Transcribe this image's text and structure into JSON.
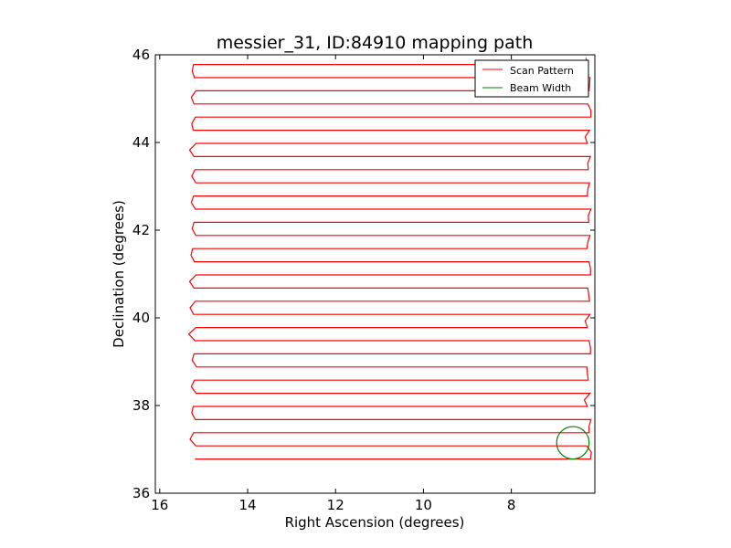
{
  "chart_data": {
    "type": "line",
    "title": "messier_31, ID:84910 mapping path",
    "xlabel": "Right Ascension (degrees)",
    "ylabel": "Declination (degrees)",
    "xlim": [
      16.1,
      6.1
    ],
    "ylim": [
      36,
      46
    ],
    "x_ticks": [
      16,
      14,
      12,
      10,
      8
    ],
    "y_ticks": [
      36,
      38,
      40,
      42,
      44,
      46
    ],
    "x_inverted": true,
    "grid": false,
    "legend": {
      "placement": "top-right"
    },
    "series": [
      {
        "name": "Scan Pattern",
        "color": "#ff0000",
        "scan": {
          "dec_start": 36.78,
          "dec_end": 45.78,
          "dec_step": 0.3,
          "ra_east": 15.2,
          "ra_west": 6.25,
          "ra_end_last": 15.0,
          "east_jitter": [
            0,
            -0.02,
            0.03,
            -0.01,
            0.04,
            -0.03,
            0.01,
            -0.04,
            0.02,
            0,
            -0.02,
            0.03,
            -0.01,
            0.02,
            -0.03,
            0.01,
            0.05,
            -0.02,
            0.02,
            -0.01,
            0.03,
            -0.02,
            0.0,
            0.02,
            -0.03,
            0.04,
            -0.01,
            0.02,
            -0.02,
            0.01,
            0.03
          ],
          "west_jitter": [
            0.05,
            -0.03,
            0.02,
            0.06,
            -0.02,
            0.04,
            0.0,
            -0.03,
            0.05,
            0.02,
            -0.02,
            0.04,
            0.03,
            -0.01,
            0.05,
            0.02,
            -0.03,
            0.04,
            0.01,
            0.06,
            -0.02,
            0.03,
            0.0,
            0.05,
            -0.02,
            0.03,
            0.06,
            -0.01,
            0.02,
            0.04,
            -0.03
          ]
        }
      },
      {
        "name": "Beam Width",
        "color": "#008000",
        "circle": {
          "ra": 6.6,
          "dec": 37.15,
          "radius": 0.37
        }
      }
    ]
  }
}
